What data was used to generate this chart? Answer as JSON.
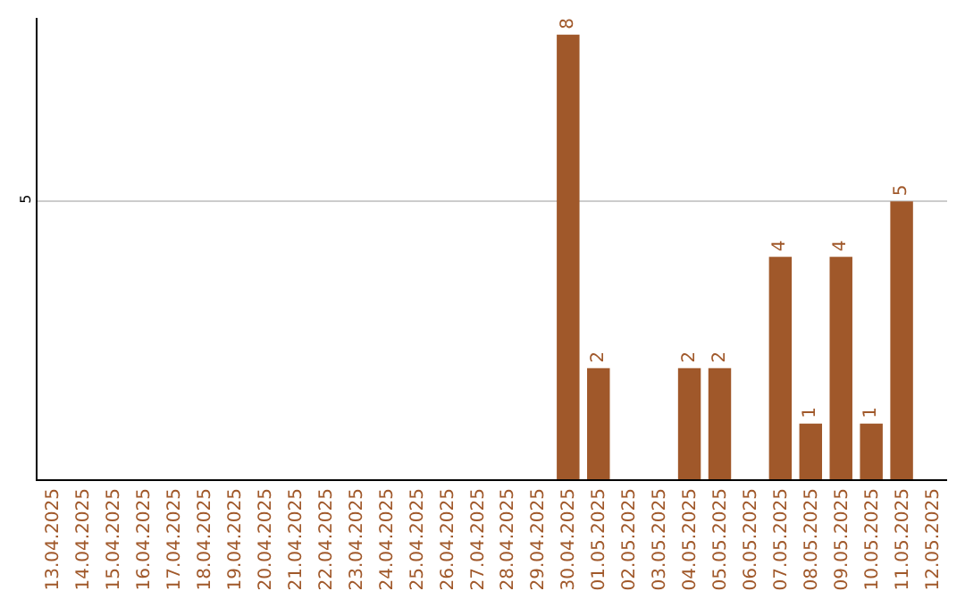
{
  "chart_data": {
    "type": "bar",
    "categories": [
      "13.04.2025",
      "14.04.2025",
      "15.04.2025",
      "16.04.2025",
      "17.04.2025",
      "18.04.2025",
      "19.04.2025",
      "20.04.2025",
      "21.04.2025",
      "22.04.2025",
      "23.04.2025",
      "24.04.2025",
      "25.04.2025",
      "26.04.2025",
      "27.04.2025",
      "28.04.2025",
      "29.04.2025",
      "30.04.2025",
      "01.05.2025",
      "02.05.2025",
      "03.05.2025",
      "04.05.2025",
      "05.05.2025",
      "06.05.2025",
      "07.05.2025",
      "08.05.2025",
      "09.05.2025",
      "10.05.2025",
      "11.05.2025",
      "12.05.2025"
    ],
    "values": [
      null,
      null,
      null,
      null,
      null,
      null,
      null,
      null,
      null,
      null,
      null,
      null,
      null,
      null,
      null,
      null,
      null,
      8,
      2,
      null,
      null,
      2,
      2,
      null,
      4,
      1,
      4,
      1,
      5,
      null
    ],
    "value_labels": [
      null,
      null,
      null,
      null,
      null,
      null,
      null,
      null,
      null,
      null,
      null,
      null,
      null,
      null,
      null,
      null,
      null,
      "8",
      "2",
      null,
      null,
      "2",
      "2",
      null,
      "4",
      "1",
      "4",
      "1",
      "5",
      null
    ],
    "color": "#a0582a",
    "ylim": [
      0,
      8.3
    ],
    "yticks": [
      5
    ],
    "grid": "y"
  }
}
